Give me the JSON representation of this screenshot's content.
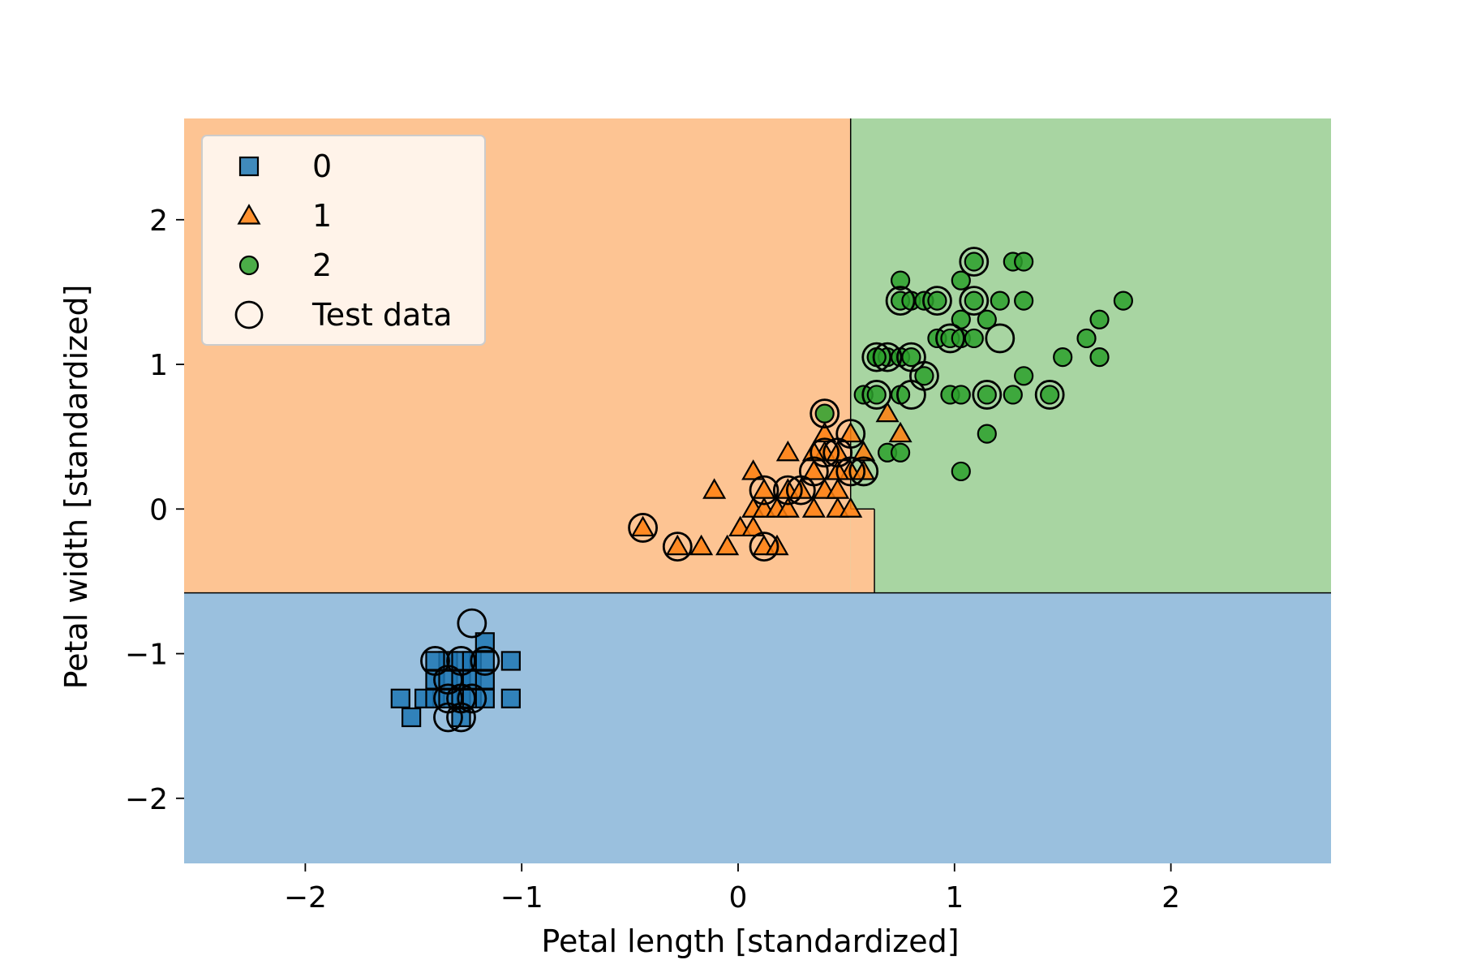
{
  "chart_data": {
    "type": "scatter",
    "title": "",
    "xlabel": "Petal length [standardized]",
    "ylabel": "Petal width [standardized]",
    "xlim": [
      -2.56,
      2.74
    ],
    "ylim": [
      -2.45,
      2.7
    ],
    "xticks": [
      -2,
      -1,
      0,
      1,
      2
    ],
    "yticks": [
      -2,
      -1,
      0,
      1,
      2
    ],
    "xtick_labels": [
      "−2",
      "−1",
      "0",
      "1",
      "2"
    ],
    "ytick_labels": [
      "−2",
      "−1",
      "0",
      "1",
      "2"
    ],
    "grid": false,
    "legend_position": "top-left",
    "decision_regions": [
      {
        "class": "1",
        "x": [
          -2.56,
          0.52
        ],
        "y": [
          -0.58,
          2.7
        ],
        "color": "#fdc493"
      },
      {
        "class": "2",
        "x": [
          0.52,
          2.74
        ],
        "y": [
          -0.58,
          2.7
        ],
        "color": "#a8d5a2"
      },
      {
        "class": "1",
        "x": [
          0.52,
          0.63
        ],
        "y": [
          -0.58,
          0.0
        ],
        "color": "#fdc493"
      },
      {
        "class": "0",
        "x": [
          -2.56,
          2.74
        ],
        "y": [
          -2.45,
          -0.58
        ],
        "color": "#9ac0de"
      }
    ],
    "series": [
      {
        "name": "0",
        "marker": "square",
        "color": "#1f77b4",
        "points": [
          [
            -1.56,
            -1.31
          ],
          [
            -1.51,
            -1.44
          ],
          [
            -1.45,
            -1.31
          ],
          [
            -1.4,
            -1.31
          ],
          [
            -1.4,
            -1.18
          ],
          [
            -1.34,
            -1.31
          ],
          [
            -1.34,
            -1.18
          ],
          [
            -1.34,
            -1.05
          ],
          [
            -1.28,
            -1.31
          ],
          [
            -1.28,
            -1.18
          ],
          [
            -1.28,
            -1.05
          ],
          [
            -1.23,
            -1.31
          ],
          [
            -1.23,
            -1.18
          ],
          [
            -1.23,
            -1.05
          ],
          [
            -1.17,
            -1.31
          ],
          [
            -1.17,
            -1.18
          ],
          [
            -1.17,
            -0.92
          ],
          [
            -1.17,
            -1.05
          ],
          [
            -1.05,
            -1.05
          ],
          [
            -1.05,
            -1.31
          ],
          [
            -1.28,
            -1.44
          ],
          [
            -1.4,
            -1.05
          ]
        ]
      },
      {
        "name": "1",
        "marker": "triangle",
        "color": "#ff7f0e",
        "points": [
          [
            -0.44,
            -0.13
          ],
          [
            -0.28,
            -0.26
          ],
          [
            -0.17,
            -0.26
          ],
          [
            -0.11,
            0.13
          ],
          [
            -0.05,
            -0.26
          ],
          [
            0.01,
            -0.13
          ],
          [
            0.07,
            -0.13
          ],
          [
            0.07,
            0.0
          ],
          [
            0.07,
            0.26
          ],
          [
            0.12,
            0.0
          ],
          [
            0.12,
            0.13
          ],
          [
            0.12,
            -0.26
          ],
          [
            0.18,
            0.0
          ],
          [
            0.18,
            -0.26
          ],
          [
            0.23,
            0.13
          ],
          [
            0.23,
            0.0
          ],
          [
            0.23,
            0.39
          ],
          [
            0.29,
            0.13
          ],
          [
            0.35,
            0.26
          ],
          [
            0.35,
            0.0
          ],
          [
            0.4,
            0.13
          ],
          [
            0.4,
            0.39
          ],
          [
            0.4,
            0.52
          ],
          [
            0.46,
            0.39
          ],
          [
            0.46,
            0.13
          ],
          [
            0.46,
            0.0
          ],
          [
            0.52,
            0.26
          ],
          [
            0.52,
            0.52
          ],
          [
            0.52,
            0.0
          ],
          [
            0.58,
            0.39
          ],
          [
            0.58,
            0.26
          ],
          [
            0.69,
            0.66
          ],
          [
            0.75,
            0.52
          ],
          [
            0.35,
            0.39
          ],
          [
            0.46,
            0.26
          ]
        ]
      },
      {
        "name": "2",
        "marker": "circle",
        "color": "#2ca02c",
        "points": [
          [
            0.4,
            0.66
          ],
          [
            0.58,
            0.79
          ],
          [
            0.64,
            0.79
          ],
          [
            0.64,
            1.05
          ],
          [
            0.69,
            0.39
          ],
          [
            0.69,
            1.05
          ],
          [
            0.75,
            0.39
          ],
          [
            0.75,
            0.79
          ],
          [
            0.75,
            1.05
          ],
          [
            0.75,
            1.44
          ],
          [
            0.75,
            1.58
          ],
          [
            0.8,
            1.05
          ],
          [
            0.8,
            1.44
          ],
          [
            0.86,
            0.92
          ],
          [
            0.86,
            1.44
          ],
          [
            0.92,
            1.18
          ],
          [
            0.92,
            1.44
          ],
          [
            0.98,
            0.79
          ],
          [
            0.98,
            1.18
          ],
          [
            1.03,
            0.79
          ],
          [
            1.03,
            1.18
          ],
          [
            1.03,
            1.31
          ],
          [
            1.03,
            1.58
          ],
          [
            1.03,
            0.26
          ],
          [
            1.09,
            1.44
          ],
          [
            1.09,
            1.71
          ],
          [
            1.15,
            0.52
          ],
          [
            1.15,
            0.79
          ],
          [
            1.15,
            1.31
          ],
          [
            1.21,
            1.44
          ],
          [
            1.27,
            0.79
          ],
          [
            1.27,
            1.71
          ],
          [
            1.32,
            0.92
          ],
          [
            1.32,
            1.44
          ],
          [
            1.32,
            1.71
          ],
          [
            1.44,
            0.79
          ],
          [
            1.5,
            1.05
          ],
          [
            1.61,
            1.18
          ],
          [
            1.67,
            1.05
          ],
          [
            1.67,
            1.31
          ],
          [
            1.78,
            1.44
          ],
          [
            1.09,
            1.18
          ],
          [
            0.64,
            1.05
          ]
        ]
      }
    ],
    "test_data": {
      "name": "Test data",
      "marker": "open-circle",
      "points": [
        [
          -1.4,
          -1.05
        ],
        [
          -1.34,
          -1.18
        ],
        [
          -1.28,
          -1.05
        ],
        [
          -1.34,
          -1.31
        ],
        [
          -1.28,
          -1.31
        ],
        [
          -1.23,
          -1.31
        ],
        [
          -1.17,
          -1.05
        ],
        [
          -1.34,
          -1.44
        ],
        [
          -1.28,
          -1.44
        ],
        [
          -1.23,
          -0.79
        ],
        [
          -0.44,
          -0.13
        ],
        [
          -0.28,
          -0.26
        ],
        [
          0.12,
          -0.26
        ],
        [
          0.12,
          0.13
        ],
        [
          0.23,
          0.13
        ],
        [
          0.29,
          0.13
        ],
        [
          0.35,
          0.26
        ],
        [
          0.4,
          0.39
        ],
        [
          0.46,
          0.39
        ],
        [
          0.52,
          0.52
        ],
        [
          0.52,
          0.26
        ],
        [
          0.58,
          0.26
        ],
        [
          0.4,
          0.66
        ],
        [
          0.64,
          0.79
        ],
        [
          0.64,
          1.05
        ],
        [
          0.69,
          1.05
        ],
        [
          0.75,
          1.44
        ],
        [
          0.8,
          0.79
        ],
        [
          0.8,
          1.05
        ],
        [
          0.86,
          0.92
        ],
        [
          0.92,
          1.44
        ],
        [
          0.98,
          1.18
        ],
        [
          1.09,
          1.71
        ],
        [
          1.09,
          1.44
        ],
        [
          1.15,
          0.79
        ],
        [
          1.21,
          1.18
        ],
        [
          1.44,
          0.79
        ]
      ]
    }
  }
}
